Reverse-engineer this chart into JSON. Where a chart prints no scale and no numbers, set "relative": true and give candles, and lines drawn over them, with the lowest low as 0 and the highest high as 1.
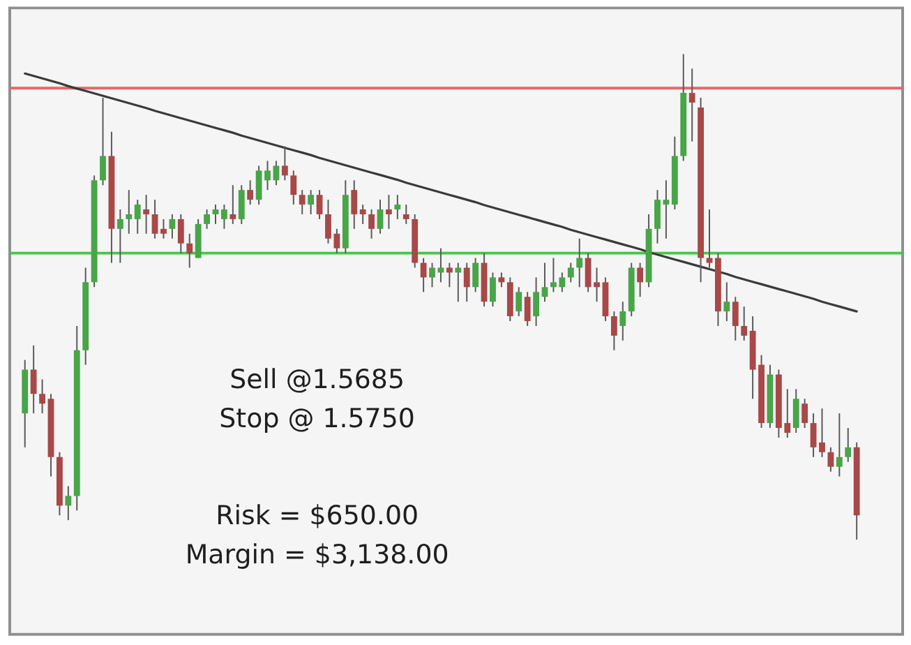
{
  "chart_data": {
    "type": "candlestick",
    "relative": true,
    "tick_labels": false,
    "categories": [
      null,
      null,
      null,
      null,
      null,
      null,
      null,
      null,
      null,
      null,
      null,
      null,
      null,
      null,
      null,
      null,
      null,
      null,
      null,
      null,
      null,
      null,
      null,
      null,
      null,
      null,
      null,
      null,
      null,
      null,
      null,
      null,
      null,
      null,
      null,
      null,
      null,
      null,
      null,
      null,
      null,
      null,
      null,
      null,
      null,
      null,
      null,
      null,
      null,
      null,
      null,
      null,
      null,
      null,
      null,
      null,
      null,
      null,
      null,
      null,
      null,
      null,
      null,
      null,
      null,
      null,
      null,
      null,
      null,
      null,
      null,
      null,
      null,
      null,
      null,
      null,
      null,
      null,
      null,
      null,
      null,
      null,
      null,
      null,
      null,
      null,
      null,
      null,
      null,
      null,
      null,
      null,
      null,
      null,
      null,
      null,
      null
    ],
    "ohlc": [
      [
        0.26,
        0.37,
        0.19,
        0.35
      ],
      [
        0.35,
        0.4,
        0.26,
        0.3
      ],
      [
        0.3,
        0.33,
        0.26,
        0.28
      ],
      [
        0.29,
        0.3,
        0.13,
        0.17
      ],
      [
        0.17,
        0.18,
        0.05,
        0.07
      ],
      [
        0.07,
        0.11,
        0.04,
        0.09
      ],
      [
        0.09,
        0.44,
        0.06,
        0.39
      ],
      [
        0.39,
        0.56,
        0.36,
        0.53
      ],
      [
        0.53,
        0.75,
        0.52,
        0.74
      ],
      [
        0.74,
        0.91,
        0.73,
        0.79
      ],
      [
        0.79,
        0.84,
        0.57,
        0.64
      ],
      [
        0.64,
        0.68,
        0.57,
        0.66
      ],
      [
        0.66,
        0.72,
        0.63,
        0.67
      ],
      [
        0.66,
        0.7,
        0.63,
        0.69
      ],
      [
        0.68,
        0.71,
        0.63,
        0.67
      ],
      [
        0.67,
        0.7,
        0.62,
        0.63
      ],
      [
        0.64,
        0.66,
        0.62,
        0.63
      ],
      [
        0.64,
        0.67,
        0.62,
        0.66
      ],
      [
        0.66,
        0.67,
        0.59,
        0.61
      ],
      [
        0.61,
        0.63,
        0.56,
        0.59
      ],
      [
        0.58,
        0.66,
        0.58,
        0.65
      ],
      [
        0.65,
        0.68,
        0.64,
        0.67
      ],
      [
        0.67,
        0.69,
        0.65,
        0.68
      ],
      [
        0.66,
        0.69,
        0.64,
        0.68
      ],
      [
        0.67,
        0.73,
        0.65,
        0.66
      ],
      [
        0.66,
        0.73,
        0.65,
        0.72
      ],
      [
        0.72,
        0.74,
        0.69,
        0.7
      ],
      [
        0.7,
        0.77,
        0.69,
        0.76
      ],
      [
        0.74,
        0.78,
        0.72,
        0.76
      ],
      [
        0.74,
        0.78,
        0.73,
        0.77
      ],
      [
        0.77,
        0.81,
        0.74,
        0.75
      ],
      [
        0.75,
        0.76,
        0.69,
        0.71
      ],
      [
        0.71,
        0.72,
        0.67,
        0.69
      ],
      [
        0.69,
        0.72,
        0.67,
        0.71
      ],
      [
        0.71,
        0.72,
        0.66,
        0.67
      ],
      [
        0.67,
        0.7,
        0.61,
        0.62
      ],
      [
        0.63,
        0.64,
        0.59,
        0.6
      ],
      [
        0.6,
        0.74,
        0.59,
        0.71
      ],
      [
        0.72,
        0.74,
        0.64,
        0.67
      ],
      [
        0.68,
        0.69,
        0.65,
        0.67
      ],
      [
        0.67,
        0.68,
        0.62,
        0.64
      ],
      [
        0.64,
        0.7,
        0.63,
        0.68
      ],
      [
        0.68,
        0.71,
        0.64,
        0.67
      ],
      [
        0.68,
        0.71,
        0.66,
        0.69
      ],
      [
        0.67,
        0.69,
        0.65,
        0.66
      ],
      [
        0.66,
        0.67,
        0.56,
        0.57
      ],
      [
        0.57,
        0.58,
        0.51,
        0.54
      ],
      [
        0.54,
        0.57,
        0.52,
        0.56
      ],
      [
        0.55,
        0.6,
        0.53,
        0.56
      ],
      [
        0.56,
        0.57,
        0.52,
        0.55
      ],
      [
        0.55,
        0.57,
        0.49,
        0.56
      ],
      [
        0.56,
        0.57,
        0.49,
        0.52
      ],
      [
        0.52,
        0.58,
        0.51,
        0.57
      ],
      [
        0.57,
        0.59,
        0.48,
        0.49
      ],
      [
        0.49,
        0.55,
        0.48,
        0.54
      ],
      [
        0.54,
        0.55,
        0.52,
        0.53
      ],
      [
        0.53,
        0.54,
        0.45,
        0.46
      ],
      [
        0.47,
        0.52,
        0.46,
        0.51
      ],
      [
        0.5,
        0.51,
        0.44,
        0.45
      ],
      [
        0.46,
        0.54,
        0.44,
        0.51
      ],
      [
        0.5,
        0.57,
        0.49,
        0.52
      ],
      [
        0.52,
        0.58,
        0.51,
        0.53
      ],
      [
        0.52,
        0.55,
        0.51,
        0.54
      ],
      [
        0.54,
        0.57,
        0.53,
        0.56
      ],
      [
        0.56,
        0.62,
        0.52,
        0.58
      ],
      [
        0.58,
        0.59,
        0.51,
        0.52
      ],
      [
        0.53,
        0.56,
        0.49,
        0.52
      ],
      [
        0.53,
        0.54,
        0.45,
        0.46
      ],
      [
        0.46,
        0.47,
        0.39,
        0.42
      ],
      [
        0.44,
        0.49,
        0.41,
        0.47
      ],
      [
        0.47,
        0.57,
        0.46,
        0.56
      ],
      [
        0.56,
        0.57,
        0.5,
        0.53
      ],
      [
        0.53,
        0.67,
        0.52,
        0.64
      ],
      [
        0.64,
        0.72,
        0.61,
        0.7
      ],
      [
        0.69,
        0.74,
        0.62,
        0.7
      ],
      [
        0.69,
        0.83,
        0.68,
        0.79
      ],
      [
        0.79,
        1,
        0.78,
        0.92
      ],
      [
        0.92,
        0.97,
        0.82,
        0.9
      ],
      [
        0.89,
        0.91,
        0.53,
        0.58
      ],
      [
        0.58,
        0.68,
        0.56,
        0.57
      ],
      [
        0.58,
        0.59,
        0.44,
        0.47
      ],
      [
        0.47,
        0.53,
        0.45,
        0.49
      ],
      [
        0.49,
        0.5,
        0.41,
        0.44
      ],
      [
        0.44,
        0.48,
        0.41,
        0.42
      ],
      [
        0.43,
        0.46,
        0.29,
        0.35
      ],
      [
        0.36,
        0.38,
        0.23,
        0.24
      ],
      [
        0.24,
        0.36,
        0.23,
        0.34
      ],
      [
        0.34,
        0.35,
        0.21,
        0.23
      ],
      [
        0.24,
        0.31,
        0.21,
        0.22
      ],
      [
        0.23,
        0.31,
        0.22,
        0.29
      ],
      [
        0.28,
        0.29,
        0.23,
        0.24
      ],
      [
        0.24,
        0.26,
        0.17,
        0.19
      ],
      [
        0.2,
        0.27,
        0.17,
        0.18
      ],
      [
        0.18,
        0.19,
        0.14,
        0.15
      ],
      [
        0.15,
        0.26,
        0.13,
        0.17
      ],
      [
        0.17,
        0.23,
        0.16,
        0.19
      ],
      [
        0.19,
        0.2,
        0,
        0.05
      ]
    ],
    "colors": [
      "#48a548",
      "#a84848",
      "#a84848",
      "#a84848",
      "#a84848",
      "#48a548",
      "#48a548",
      "#48a548",
      "#48a548",
      "#48a548",
      "#a84848",
      "#48a548",
      "#48a548",
      "#48a548",
      "#a84848",
      "#a84848",
      "#a84848",
      "#48a548",
      "#a84848",
      "#a84848",
      "#48a548",
      "#48a548",
      "#48a548",
      "#48a548",
      "#a84848",
      "#48a548",
      "#a84848",
      "#48a548",
      "#48a548",
      "#48a548",
      "#a84848",
      "#a84848",
      "#a84848",
      "#48a548",
      "#a84848",
      "#a84848",
      "#a84848",
      "#48a548",
      "#a84848",
      "#a84848",
      "#a84848",
      "#48a548",
      "#a84848",
      "#48a548",
      "#a84848",
      "#a84848",
      "#a84848",
      "#48a548",
      "#48a548",
      "#a84848",
      "#48a548",
      "#a84848",
      "#48a548",
      "#a84848",
      "#48a548",
      "#a84848",
      "#a84848",
      "#48a548",
      "#a84848",
      "#48a548",
      "#48a548",
      "#48a548",
      "#48a548",
      "#48a548",
      "#48a548",
      "#a84848",
      "#a84848",
      "#a84848",
      "#a84848",
      "#48a548",
      "#48a548",
      "#a84848",
      "#48a548",
      "#48a548",
      "#48a548",
      "#48a548",
      "#48a548",
      "#a84848",
      "#a84848",
      "#a84848",
      "#a84848",
      "#48a548",
      "#a84848",
      "#a84848",
      "#a84848",
      "#a84848",
      "#48a548",
      "#a84848",
      "#a84848",
      "#48a548",
      "#a84848",
      "#a84848",
      "#a84848",
      "#a84848",
      "#48a548",
      "#48a548",
      "#a84848"
    ],
    "series": [
      {
        "type": "line",
        "color": "#3a3a3a",
        "values": [
          0.96,
          0.955,
          0.95,
          0.945,
          0.94,
          0.934,
          0.929,
          0.924,
          0.919,
          0.914,
          0.909,
          0.904,
          0.899,
          0.894,
          0.889,
          0.883,
          0.878,
          0.873,
          0.868,
          0.863,
          0.858,
          0.853,
          0.848,
          0.843,
          0.838,
          0.832,
          0.827,
          0.822,
          0.817,
          0.812,
          0.807,
          0.802,
          0.797,
          0.792,
          0.786,
          0.781,
          0.776,
          0.771,
          0.766,
          0.761,
          0.756,
          0.751,
          0.746,
          0.741,
          0.735,
          0.73,
          0.725,
          0.72,
          0.715,
          0.71,
          0.705,
          0.7,
          0.695,
          0.689,
          0.684,
          0.679,
          0.674,
          0.669,
          0.664,
          0.659,
          0.654,
          0.649,
          0.644,
          0.638,
          0.633,
          0.628,
          0.623,
          0.618,
          0.613,
          0.608,
          0.603,
          0.598,
          0.592,
          0.587,
          0.582,
          0.577,
          0.572,
          0.567,
          0.562,
          0.557,
          0.552,
          0.547,
          0.541,
          0.536,
          0.531,
          0.526,
          0.521,
          0.516,
          0.511,
          0.506,
          0.501,
          0.496,
          0.49,
          0.485,
          0.48,
          0.475,
          0.47
        ]
      }
    ],
    "ref_lines": [
      {
        "axis": "y",
        "value": 0.93,
        "color": "#e06a6a"
      },
      {
        "axis": "y",
        "value": 0.59,
        "color": "#44c844"
      }
    ],
    "annotations": [
      "Sell @1.5685",
      "Stop @ 1.5750",
      "Risk = $650.00",
      "Margin = $3,138.00"
    ]
  }
}
